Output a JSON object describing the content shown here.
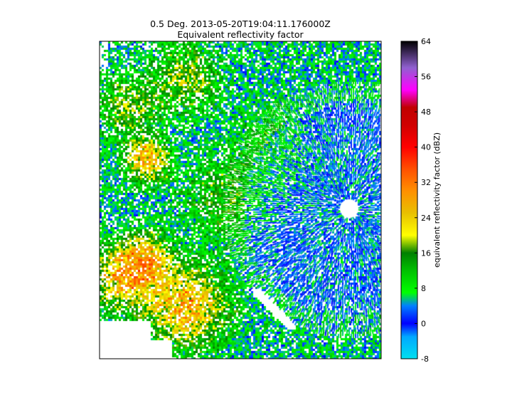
{
  "chart_data": {
    "type": "heatmap",
    "title_line1": "0.5 Deg. 2013-05-20T19:04:11.176000Z",
    "title_line2": "Equivalent reflectivity factor",
    "colorbar": {
      "label": "equivalent reflectivity factor (dBZ)",
      "range": [
        -8,
        64
      ],
      "ticks": [
        64,
        56,
        48,
        40,
        32,
        24,
        16,
        8,
        0,
        -8
      ],
      "stops": [
        {
          "v": -8,
          "c": "#00e0f0"
        },
        {
          "v": -3,
          "c": "#00a8ff"
        },
        {
          "v": 0,
          "c": "#0000ff"
        },
        {
          "v": 4,
          "c": "#0080ff"
        },
        {
          "v": 7,
          "c": "#00ff00"
        },
        {
          "v": 12,
          "c": "#00c000"
        },
        {
          "v": 16,
          "c": "#008000"
        },
        {
          "v": 20,
          "c": "#ffff00"
        },
        {
          "v": 25,
          "c": "#e8c000"
        },
        {
          "v": 30,
          "c": "#ff9000"
        },
        {
          "v": 35,
          "c": "#ff5000"
        },
        {
          "v": 40,
          "c": "#ff0000"
        },
        {
          "v": 45,
          "c": "#d00000"
        },
        {
          "v": 49,
          "c": "#c00000"
        },
        {
          "v": 53,
          "c": "#ff00ff"
        },
        {
          "v": 58,
          "c": "#9060d0"
        },
        {
          "v": 64,
          "c": "#000000"
        }
      ]
    },
    "grid": false,
    "no_data_color": "#ffffff"
  }
}
